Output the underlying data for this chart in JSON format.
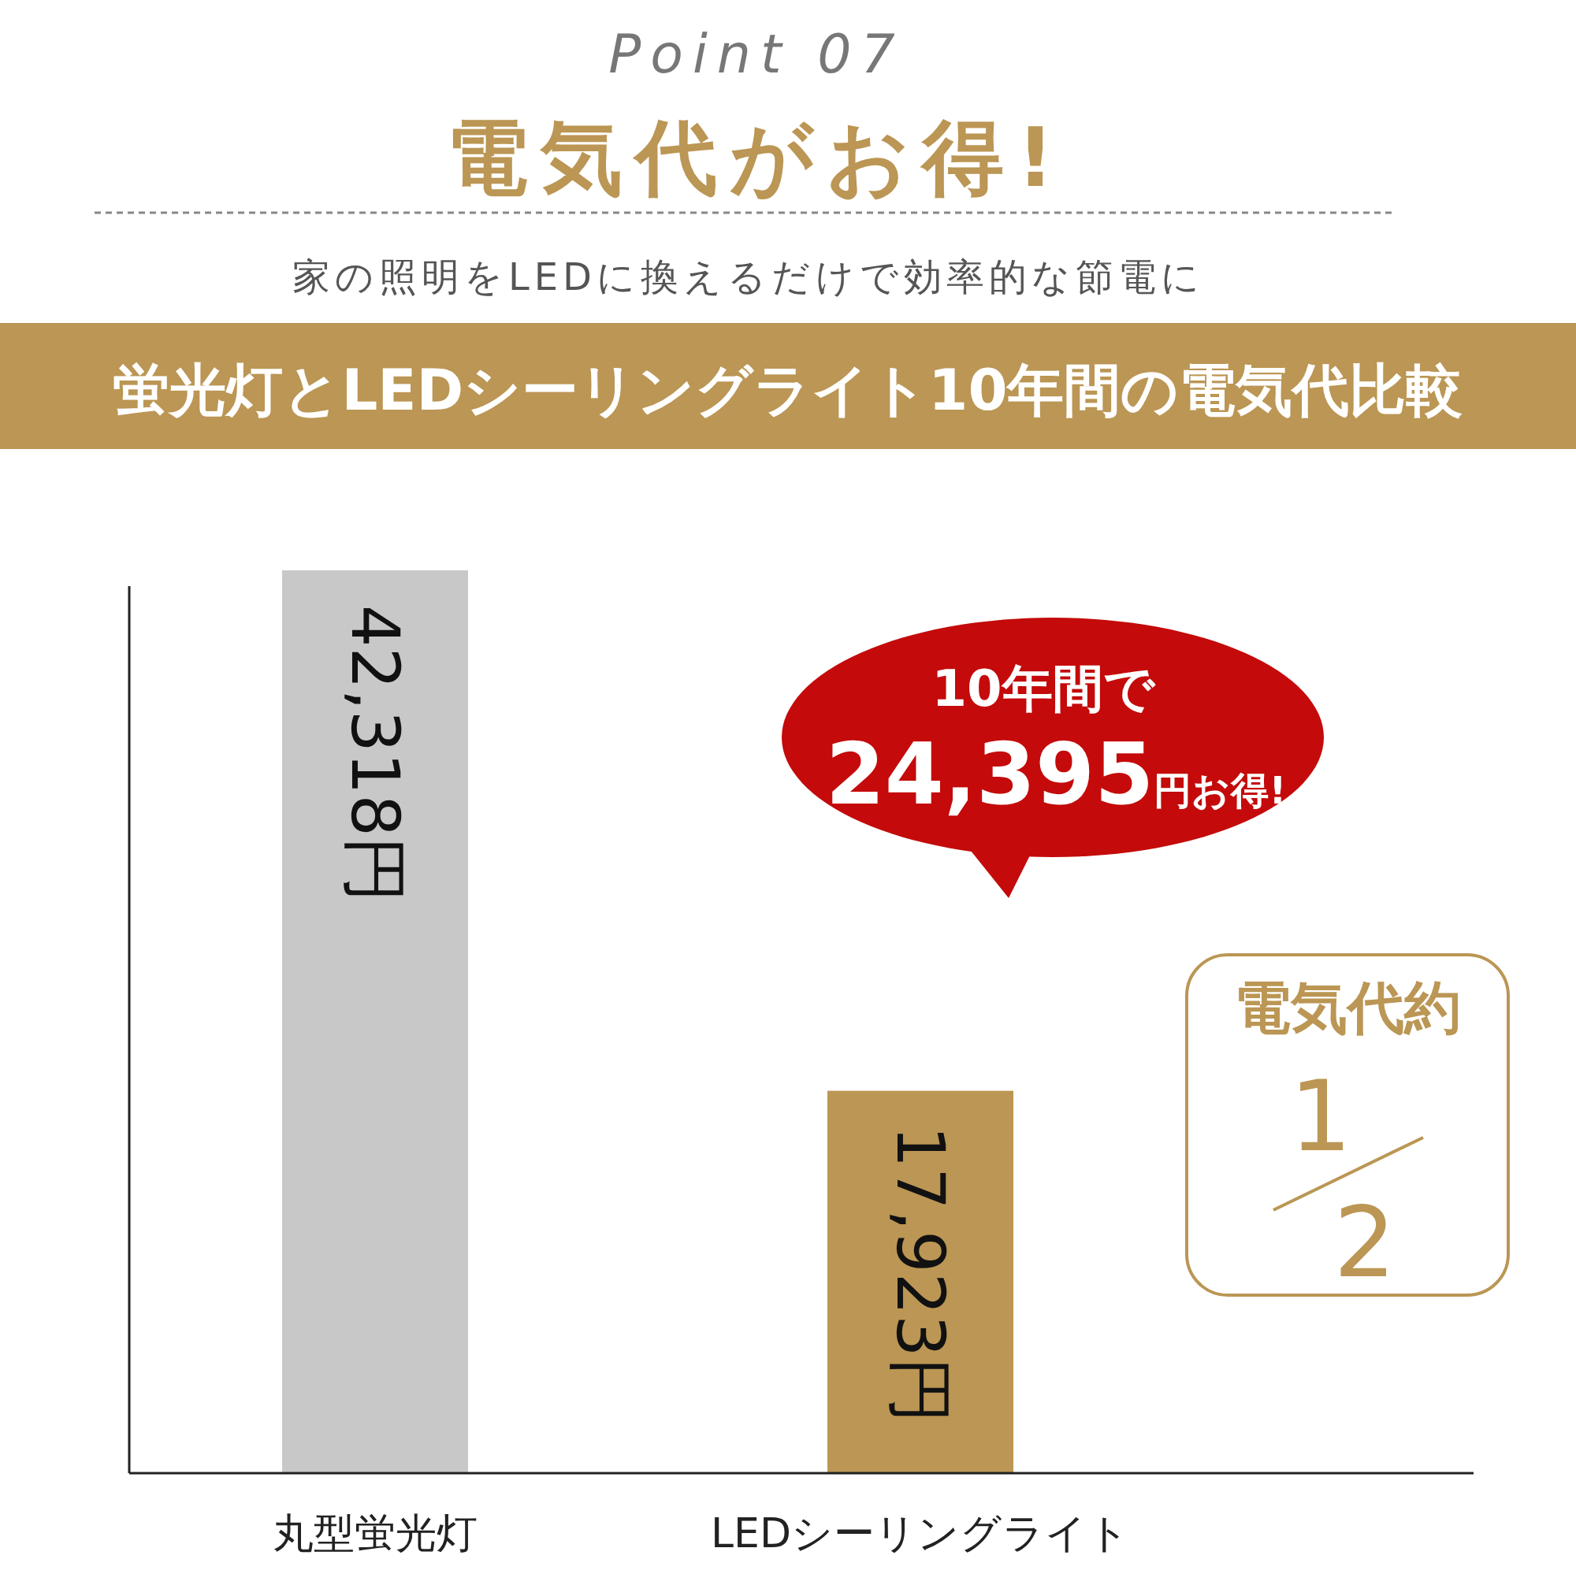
{
  "chart_data": {
    "type": "bar",
    "title": "電気代がお得!",
    "subtitle": "家の照明をLEDに換えるだけで効率的な節電に",
    "categories": [
      "丸型蛍光灯",
      "LEDシーリングライト"
    ],
    "values": [
      42318,
      17923
    ],
    "value_labels": [
      "42,318円",
      "17,923円"
    ],
    "colors": [
      "#c8c8c8",
      "#bb9654"
    ],
    "annotations": [
      "Point 07",
      "蛍光灯とLEDシーリングライト10年間の電気代比較",
      "10年間で",
      "24,395円お得!",
      "電気代約",
      "1/2"
    ]
  }
}
